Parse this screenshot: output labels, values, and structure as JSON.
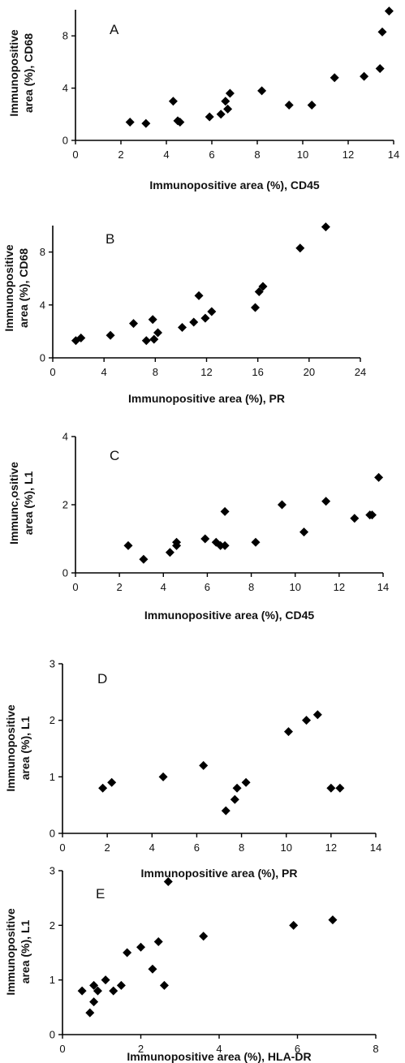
{
  "chart_data": [
    {
      "type": "scatter",
      "panel": "A",
      "xlabel": "Immunopositive area (%), CD45",
      "ylabel": [
        "Immunopositive",
        "area (%), CD68"
      ],
      "xlim": [
        0,
        14
      ],
      "ylim": [
        0,
        10
      ],
      "xticks": [
        0,
        2,
        4,
        6,
        8,
        10,
        12,
        14
      ],
      "yticks": [
        0,
        4,
        8
      ],
      "x": [
        2.4,
        3.1,
        4.3,
        4.5,
        4.6,
        5.9,
        6.4,
        6.6,
        6.8,
        6.7,
        8.2,
        9.4,
        10.4,
        11.4,
        12.7,
        13.4,
        13.5,
        13.8
      ],
      "y": [
        1.4,
        1.3,
        3.0,
        1.5,
        1.4,
        1.8,
        2.0,
        3.0,
        3.6,
        2.4,
        3.8,
        2.7,
        2.7,
        4.8,
        4.9,
        5.5,
        8.3,
        9.9
      ]
    },
    {
      "type": "scatter",
      "panel": "B",
      "xlabel": "Immunopositive area (%), PR",
      "ylabel": [
        "Immunopositive",
        "area (%), CD68"
      ],
      "xlim": [
        0,
        24
      ],
      "ylim": [
        0,
        10
      ],
      "xticks": [
        0,
        4,
        8,
        12,
        16,
        20,
        24
      ],
      "yticks": [
        0,
        4,
        8
      ],
      "x": [
        1.8,
        2.2,
        4.5,
        6.3,
        7.3,
        7.8,
        7.9,
        8.2,
        10.1,
        11.0,
        11.4,
        11.9,
        12.4,
        15.8,
        16.1,
        16.4,
        19.3,
        21.3
      ],
      "y": [
        1.3,
        1.5,
        1.7,
        2.6,
        1.3,
        2.9,
        1.4,
        1.9,
        2.3,
        2.7,
        4.7,
        3.0,
        3.5,
        3.8,
        5.0,
        5.4,
        8.3,
        9.9
      ]
    },
    {
      "type": "scatter",
      "panel": "C",
      "xlabel": "Immunopositive area (%), CD45",
      "ylabel": [
        "Immunc,ositive",
        "area (%), L1"
      ],
      "xlim": [
        0,
        14
      ],
      "ylim": [
        0,
        4
      ],
      "xticks": [
        0,
        2,
        4,
        6,
        8,
        10,
        12,
        14
      ],
      "yticks": [
        0,
        2,
        4
      ],
      "x": [
        2.4,
        3.1,
        4.3,
        4.6,
        4.6,
        5.9,
        6.4,
        6.6,
        6.8,
        6.8,
        8.2,
        9.4,
        10.4,
        11.4,
        12.7,
        13.4,
        13.5,
        13.8
      ],
      "y": [
        0.8,
        0.4,
        0.6,
        0.8,
        0.9,
        1.0,
        0.9,
        0.8,
        0.8,
        1.8,
        0.9,
        2.0,
        1.2,
        2.1,
        1.6,
        1.7,
        1.7,
        2.8
      ]
    },
    {
      "type": "scatter",
      "panel": "D",
      "xlabel": "Immunopositive area (%), PR",
      "ylabel": [
        "Immunopositive",
        "area (%), L1"
      ],
      "xlim": [
        0,
        14
      ],
      "ylim": [
        0,
        3
      ],
      "xticks": [
        0,
        2,
        4,
        6,
        8,
        10,
        12,
        14
      ],
      "yticks": [
        0,
        1,
        2,
        3
      ],
      "x": [
        1.8,
        2.2,
        4.5,
        6.3,
        7.3,
        7.7,
        7.8,
        8.2,
        10.1,
        10.9,
        11.4,
        12.0,
        12.4
      ],
      "y": [
        0.8,
        0.9,
        1.0,
        1.2,
        0.4,
        0.6,
        0.8,
        0.9,
        1.8,
        2.0,
        2.1,
        0.8,
        0.8
      ]
    },
    {
      "type": "scatter",
      "panel": "E",
      "xlabel": "Immunopositive area (%), HLA-DR",
      "ylabel": [
        "Immunopositive",
        "area (%), L1"
      ],
      "xlim": [
        0,
        8
      ],
      "ylim": [
        0,
        3
      ],
      "xticks": [
        0,
        2,
        4,
        6,
        8
      ],
      "yticks": [
        0,
        1,
        2,
        3
      ],
      "x": [
        0.5,
        0.7,
        0.8,
        0.8,
        0.9,
        1.1,
        1.3,
        1.5,
        1.65,
        2.0,
        2.3,
        2.45,
        2.6,
        2.7,
        3.6,
        5.9,
        6.9
      ],
      "y": [
        0.8,
        0.4,
        0.6,
        0.9,
        0.8,
        1.0,
        0.8,
        0.9,
        1.5,
        1.6,
        1.2,
        1.7,
        0.9,
        2.8,
        1.8,
        2.0,
        2.1
      ]
    }
  ]
}
